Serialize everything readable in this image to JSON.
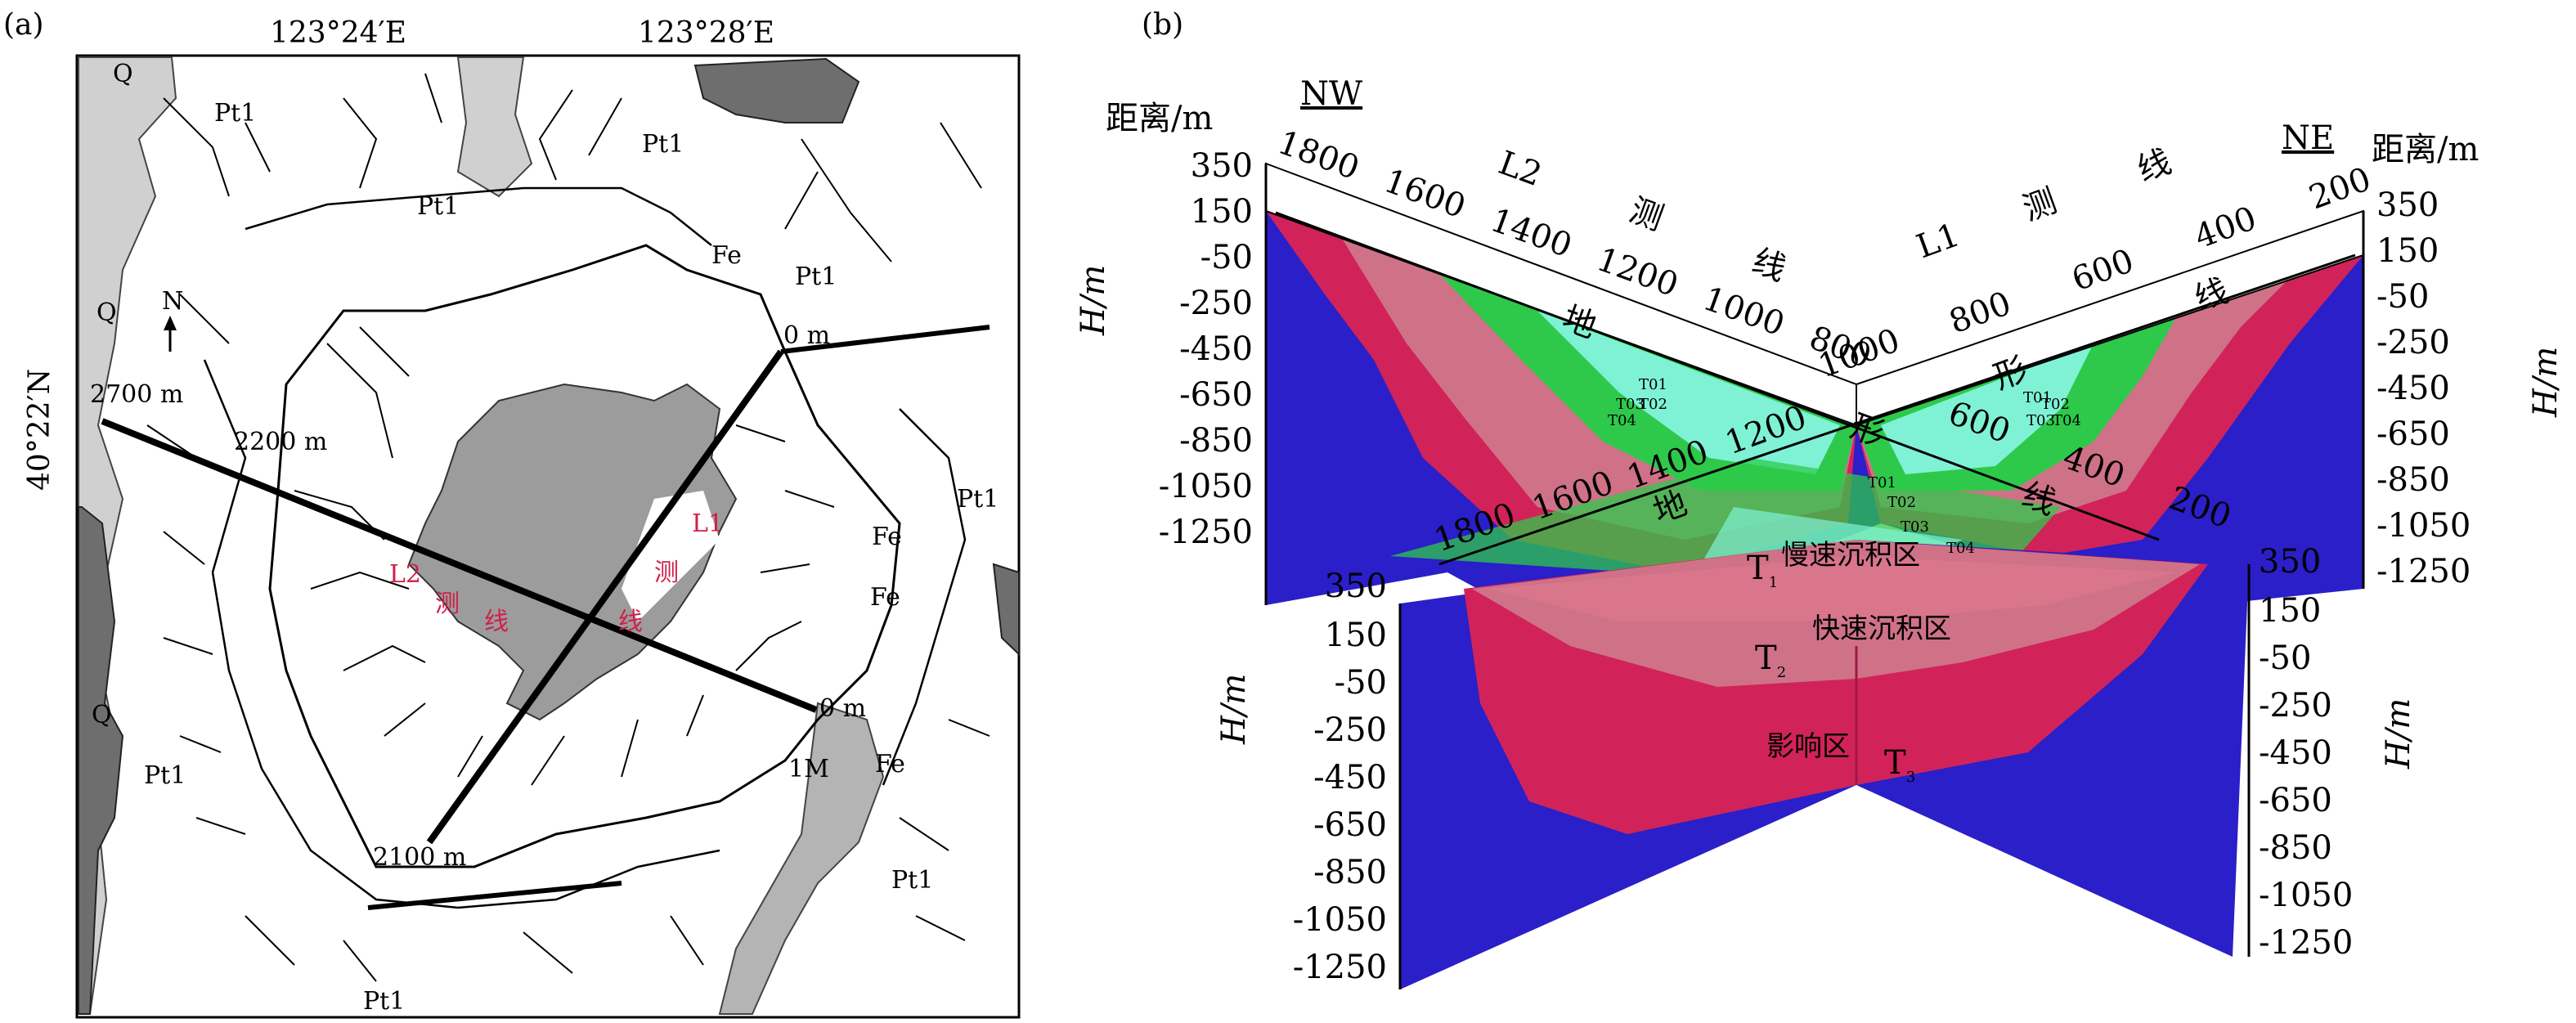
{
  "panel_a": {
    "label": "(a)",
    "lon_left": "123°24′E",
    "lon_right": "123°28′E",
    "lat": "40°22′N",
    "north": "N",
    "units": [
      "Q",
      "Pt1",
      "Pt1",
      "Pt1",
      "Pt1",
      "Pt1",
      "Q",
      "Q",
      "Pt1",
      "Pt1",
      "Pt1",
      "Fe",
      "Fe",
      "Fe",
      "Fe",
      "1M"
    ],
    "line_marks": [
      "2700 m",
      "2200 m",
      "0 m",
      "0 m",
      "2100 m"
    ],
    "line_labels": [
      "L1",
      "L2",
      "测",
      "线",
      "测",
      "线"
    ]
  },
  "panel_b": {
    "label": "(b)",
    "left_dist_label": "距离/m",
    "right_dist_label": "距离/m",
    "nw": "NW",
    "ne": "NE",
    "l2_title": [
      "L2",
      "测",
      "线"
    ],
    "l1_title": [
      "L1",
      "测",
      "线"
    ],
    "terrain_l2": [
      "地",
      "形",
      "线"
    ],
    "terrain_l1": [
      "地",
      "形",
      "线"
    ],
    "l2_top_ticks": [
      "1800",
      "1600",
      "1400",
      "1200",
      "1000",
      "800"
    ],
    "l1_top_ticks": [
      "1000",
      "800",
      "600",
      "400",
      "200"
    ],
    "l2_front_ticks": [
      "1800",
      "1600",
      "1400",
      "1200"
    ],
    "l1_front_ticks": [
      "600",
      "400",
      "200"
    ],
    "h_label": "H/m",
    "h_ticks": [
      "350",
      "150",
      "-50",
      "-250",
      "-450",
      "-650",
      "-850",
      "-1050",
      "-1250"
    ],
    "h_ticks_short": [
      "350",
      "150",
      "-50",
      "-450",
      "-650",
      "-850",
      "-1050",
      "-1250"
    ],
    "h_ticks_right_back": [
      "350",
      "150",
      "-50",
      "-250",
      "-450",
      "-650",
      "-850",
      "-1050",
      "-1250"
    ],
    "h_ticks_right_front": [
      "350",
      "150",
      "-50",
      "-250",
      "-450",
      "-650",
      "-850",
      "-1050",
      "-1250"
    ],
    "zones": {
      "slow": "慢速沉积区",
      "fast": "快速沉积区",
      "affect": "影响区"
    },
    "t_labels": {
      "t1": "T",
      "t1s": "1",
      "t2": "T",
      "t2s": "2",
      "t3": "T",
      "t3s": "3"
    },
    "sub_labels": [
      "T01",
      "T02",
      "T03",
      "T04"
    ],
    "colors": {
      "blue": "#2a1fc8",
      "red": "#d1235a",
      "pink": "#cf7287",
      "green": "#2ec94a",
      "cyan": "#7ff2d5",
      "gray": "#a0a0a0"
    }
  }
}
